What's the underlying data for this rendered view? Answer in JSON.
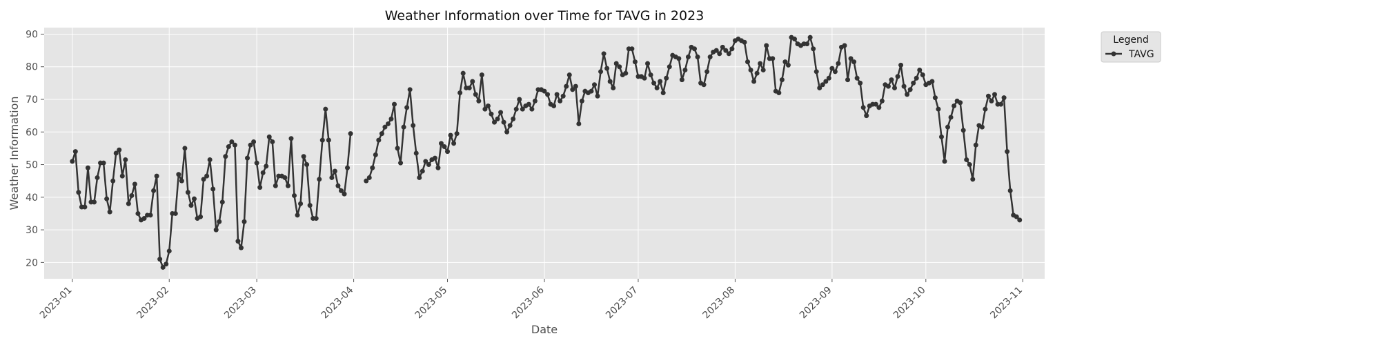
{
  "chart_data": {
    "type": "line",
    "title": "Weather Information over Time for TAVG in 2023",
    "xlabel": "Date",
    "ylabel": "Weather Information",
    "x_range": [
      "2022-12-23",
      "2023-11-08"
    ],
    "ylim": [
      15,
      92
    ],
    "x_ticks": [
      "2023-01",
      "2023-02",
      "2023-03",
      "2023-04",
      "2023-05",
      "2023-06",
      "2023-07",
      "2023-08",
      "2023-09",
      "2023-10",
      "2023-11"
    ],
    "y_ticks": [
      20,
      30,
      40,
      50,
      60,
      70,
      80,
      90
    ],
    "grid": true,
    "legend": {
      "title": "Legend",
      "placement": "outside top-right",
      "entries": [
        "TAVG"
      ]
    },
    "series": [
      {
        "name": "TAVG",
        "color": "#333333",
        "x": [
          "2023-01-01",
          "2023-01-02",
          "2023-01-03",
          "2023-01-04",
          "2023-01-05",
          "2023-01-06",
          "2023-01-07",
          "2023-01-08",
          "2023-01-09",
          "2023-01-10",
          "2023-01-11",
          "2023-01-12",
          "2023-01-13",
          "2023-01-14",
          "2023-01-15",
          "2023-01-16",
          "2023-01-17",
          "2023-01-18",
          "2023-01-19",
          "2023-01-20",
          "2023-01-21",
          "2023-01-22",
          "2023-01-23",
          "2023-01-24",
          "2023-01-25",
          "2023-01-26",
          "2023-01-27",
          "2023-01-28",
          "2023-01-29",
          "2023-01-30",
          "2023-01-31",
          "2023-02-01",
          "2023-02-02",
          "2023-02-03",
          "2023-02-04",
          "2023-02-05",
          "2023-02-06",
          "2023-02-07",
          "2023-02-08",
          "2023-02-09",
          "2023-02-10",
          "2023-02-11",
          "2023-02-12",
          "2023-02-13",
          "2023-02-14",
          "2023-02-15",
          "2023-02-16",
          "2023-02-17",
          "2023-02-18",
          "2023-02-19",
          "2023-02-20",
          "2023-02-21",
          "2023-02-22",
          "2023-02-23",
          "2023-02-24",
          "2023-02-25",
          "2023-02-26",
          "2023-02-27",
          "2023-02-28",
          "2023-03-01",
          "2023-03-02",
          "2023-03-03",
          "2023-03-04",
          "2023-03-05",
          "2023-03-06",
          "2023-03-07",
          "2023-03-08",
          "2023-03-09",
          "2023-03-10",
          "2023-03-11",
          "2023-03-12",
          "2023-03-13",
          "2023-03-14",
          "2023-03-15",
          "2023-03-16",
          "2023-03-17",
          "2023-03-18",
          "2023-03-19",
          "2023-03-20",
          "2023-03-21",
          "2023-03-22",
          "2023-03-23",
          "2023-03-24",
          "2023-03-25",
          "2023-03-26",
          "2023-03-27",
          "2023-03-28",
          "2023-03-29",
          "2023-03-30",
          "2023-03-31",
          "2023-04-01",
          "2023-04-02",
          "2023-04-03",
          "2023-04-04",
          "2023-04-05",
          "2023-04-06",
          "2023-04-07",
          "2023-04-08",
          "2023-04-09",
          "2023-04-10",
          "2023-04-11",
          "2023-04-12",
          "2023-04-13",
          "2023-04-14",
          "2023-04-15",
          "2023-04-16",
          "2023-04-17",
          "2023-04-18",
          "2023-04-19",
          "2023-04-20",
          "2023-04-21",
          "2023-04-22",
          "2023-04-23",
          "2023-04-24",
          "2023-04-25",
          "2023-04-26",
          "2023-04-27",
          "2023-04-28",
          "2023-04-29",
          "2023-04-30",
          "2023-05-01",
          "2023-05-02",
          "2023-05-03",
          "2023-05-04",
          "2023-05-05",
          "2023-05-06",
          "2023-05-07",
          "2023-05-08",
          "2023-05-09",
          "2023-05-10",
          "2023-05-11",
          "2023-05-12",
          "2023-05-13",
          "2023-05-14",
          "2023-05-15",
          "2023-05-16",
          "2023-05-17",
          "2023-05-18",
          "2023-05-19",
          "2023-05-20",
          "2023-05-21",
          "2023-05-22",
          "2023-05-23",
          "2023-05-24",
          "2023-05-25",
          "2023-05-26",
          "2023-05-27",
          "2023-05-28",
          "2023-05-29",
          "2023-05-30",
          "2023-05-31",
          "2023-06-01",
          "2023-06-02",
          "2023-06-03",
          "2023-06-04",
          "2023-06-05",
          "2023-06-06",
          "2023-06-07",
          "2023-06-08",
          "2023-06-09",
          "2023-06-10",
          "2023-06-11",
          "2023-06-12",
          "2023-06-13",
          "2023-06-14",
          "2023-06-15",
          "2023-06-16",
          "2023-06-17",
          "2023-06-18",
          "2023-06-19",
          "2023-06-20",
          "2023-06-21",
          "2023-06-22",
          "2023-06-23",
          "2023-06-24",
          "2023-06-25",
          "2023-06-26",
          "2023-06-27",
          "2023-06-28",
          "2023-06-29",
          "2023-06-30",
          "2023-07-01",
          "2023-07-02",
          "2023-07-03",
          "2023-07-04",
          "2023-07-05",
          "2023-07-06",
          "2023-07-07",
          "2023-07-08",
          "2023-07-09",
          "2023-07-10",
          "2023-07-11",
          "2023-07-12",
          "2023-07-13",
          "2023-07-14",
          "2023-07-15",
          "2023-07-16",
          "2023-07-17",
          "2023-07-18",
          "2023-07-19",
          "2023-07-20",
          "2023-07-21",
          "2023-07-22",
          "2023-07-23",
          "2023-07-24",
          "2023-07-25",
          "2023-07-26",
          "2023-07-27",
          "2023-07-28",
          "2023-07-29",
          "2023-07-30",
          "2023-07-31",
          "2023-08-01",
          "2023-08-02",
          "2023-08-03",
          "2023-08-04",
          "2023-08-05",
          "2023-08-06",
          "2023-08-07",
          "2023-08-08",
          "2023-08-09",
          "2023-08-10",
          "2023-08-11",
          "2023-08-12",
          "2023-08-13",
          "2023-08-14",
          "2023-08-15",
          "2023-08-16",
          "2023-08-17",
          "2023-08-18",
          "2023-08-19",
          "2023-08-20",
          "2023-08-21",
          "2023-08-22",
          "2023-08-23",
          "2023-08-24",
          "2023-08-25",
          "2023-08-26",
          "2023-08-27",
          "2023-08-28",
          "2023-08-29",
          "2023-08-30",
          "2023-08-31",
          "2023-09-01",
          "2023-09-02",
          "2023-09-03",
          "2023-09-04",
          "2023-09-05",
          "2023-09-06",
          "2023-09-07",
          "2023-09-08",
          "2023-09-09",
          "2023-09-10",
          "2023-09-11",
          "2023-09-12",
          "2023-09-13",
          "2023-09-14",
          "2023-09-15",
          "2023-09-16",
          "2023-09-17",
          "2023-09-18",
          "2023-09-19",
          "2023-09-20",
          "2023-09-21",
          "2023-09-22",
          "2023-09-23",
          "2023-09-24",
          "2023-09-25",
          "2023-09-26",
          "2023-09-27",
          "2023-09-28",
          "2023-09-29",
          "2023-09-30",
          "2023-10-01",
          "2023-10-02",
          "2023-10-03",
          "2023-10-04",
          "2023-10-05",
          "2023-10-06",
          "2023-10-07",
          "2023-10-08",
          "2023-10-09",
          "2023-10-10",
          "2023-10-11",
          "2023-10-12",
          "2023-10-13",
          "2023-10-14",
          "2023-10-15",
          "2023-10-16",
          "2023-10-17",
          "2023-10-18",
          "2023-10-19",
          "2023-10-20",
          "2023-10-21",
          "2023-10-22",
          "2023-10-23",
          "2023-10-24",
          "2023-10-25",
          "2023-10-26",
          "2023-10-27",
          "2023-10-28",
          "2023-10-29",
          "2023-10-30",
          "2023-10-31"
        ],
        "y": [
          51,
          54,
          41.5,
          37,
          37,
          49,
          38.5,
          38.5,
          46,
          50.5,
          50.5,
          39.5,
          35.5,
          45,
          53.5,
          54.5,
          46.5,
          51.5,
          38,
          40.5,
          44,
          35,
          33,
          33.5,
          34.5,
          34.5,
          42,
          46.5,
          21,
          18.5,
          19.5,
          23.5,
          35,
          35,
          47,
          45,
          55,
          41.5,
          37.5,
          39.5,
          33.5,
          34,
          45.5,
          46.5,
          51.5,
          42.5,
          30,
          32.5,
          38.5,
          52.5,
          55.5,
          57,
          56,
          26.5,
          24.5,
          32.5,
          52,
          56,
          57,
          50.5,
          43,
          47.5,
          49.5,
          58.5,
          57,
          43.5,
          46.5,
          46.5,
          46,
          43.5,
          58,
          40.5,
          34.5,
          38,
          52.5,
          50,
          37.5,
          33.5,
          33.5,
          45.5,
          57.5,
          67,
          57.5,
          46,
          48,
          43.5,
          42,
          41,
          49,
          59.5,
          null,
          null,
          null,
          null,
          45,
          46,
          49,
          53,
          57.5,
          59.5,
          61.5,
          62.5,
          64,
          68.5,
          55,
          50.5,
          61.5,
          67.5,
          73,
          62,
          53.5,
          46,
          48,
          51,
          50,
          51.5,
          52,
          49,
          56.5,
          55.5,
          54,
          59,
          56.5,
          59.5,
          72,
          78,
          73.5,
          73.5,
          75.5,
          71.5,
          69.5,
          77.5,
          67,
          68,
          65.5,
          63,
          64,
          66,
          63,
          60,
          62,
          64,
          67,
          70,
          67,
          68,
          68.5,
          67,
          69.5,
          73,
          73,
          72.5,
          71.5,
          68.5,
          68,
          71.5,
          69.5,
          71,
          74,
          77.5,
          73,
          74,
          62.5,
          69.5,
          72.5,
          72,
          72.5,
          74.5,
          71,
          78.5,
          84,
          79.5,
          75.5,
          73.5,
          81,
          80,
          77.5,
          78,
          85.5,
          85.5,
          81.5,
          77,
          77,
          76.5,
          81,
          77.5,
          75,
          73.5,
          75.5,
          72,
          76.5,
          80,
          83.5,
          83,
          82.5,
          76,
          79,
          83,
          86,
          85.5,
          83,
          75,
          74.5,
          78.5,
          83,
          84.5,
          85,
          84,
          86,
          85,
          84,
          85.5,
          88,
          88.5,
          88,
          87.5,
          81.5,
          79,
          75.5,
          78,
          81,
          79,
          86.5,
          82.5,
          82.5,
          72.5,
          72,
          76,
          81.5,
          80.5,
          89,
          88.5,
          87,
          86.5,
          87,
          87,
          89,
          85.5,
          78.5,
          73.5,
          74.5,
          75.5,
          76.5,
          79.5,
          78.5,
          81,
          86,
          86.5,
          76,
          82.5,
          81.5,
          76.5,
          75,
          67.5,
          65,
          68,
          68.5,
          68.5,
          67.5,
          69.5,
          74.5,
          74,
          76,
          73.5,
          77,
          80.5,
          74,
          71.5,
          73,
          75,
          76.5,
          79,
          77.5,
          74.5,
          75,
          75.5,
          70.5,
          67,
          58.5,
          51,
          61.5,
          64.5,
          68,
          69.5,
          69,
          60.5,
          51.5,
          50,
          45.5,
          56,
          62,
          61.5,
          67,
          71,
          69.5,
          71.5,
          68.5,
          68.5,
          70.5,
          54,
          42,
          34.5,
          34,
          33
        ]
      }
    ]
  }
}
